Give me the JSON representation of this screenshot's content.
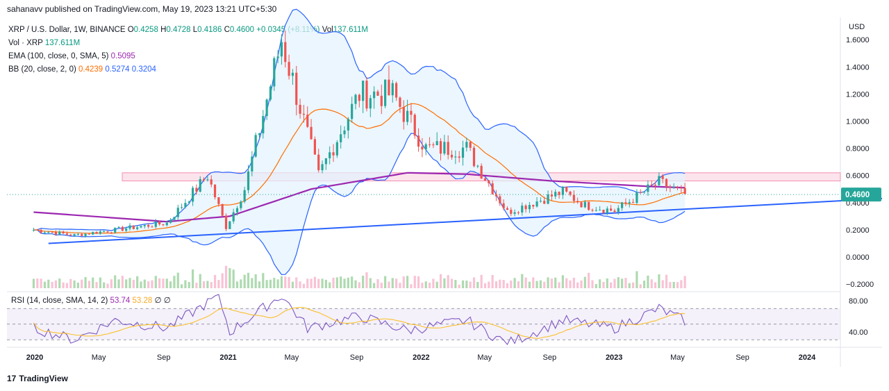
{
  "header": {
    "published": "sahanavv published on TradingView.com, May 19, 2023 13:21 UTC+5:30"
  },
  "legend": {
    "symbol": "XRP / U.S. Dollar, 1W, BINANCE",
    "o_label": "O",
    "o": "0.4258",
    "h_label": "H",
    "h": "0.4728",
    "l_label": "L",
    "l": "0.4186",
    "c_label": "C",
    "c": "0.4600",
    "change": "+0.0345 (+8.11%)",
    "vol_label": "Vol",
    "vol": "137.611M",
    "vol_row_label": "Vol · XRP",
    "vol_row": "137.611M",
    "ema_label": "EMA (100, close, 0, SMA, 5)",
    "ema": "0.5095",
    "bb_label": "BB (20, close, 2, 0)",
    "bb_mid": "0.4239",
    "bb_up": "0.5274",
    "bb_low": "0.3204"
  },
  "rsi_legend": {
    "label": "RSI (14, close, SMA, 14, 2)",
    "rsi": "53.74",
    "sma": "53.28",
    "z1": "∅",
    "z2": "∅"
  },
  "price_axis": {
    "unit": "USD",
    "ticks": [
      "1.6000",
      "1.4000",
      "1.2000",
      "1.0000",
      "0.8000",
      "0.6000",
      "0.4000",
      "0.2000",
      "0.0000",
      "−0.2000"
    ],
    "current": "0.4600"
  },
  "rsi_axis": {
    "ticks": [
      "80.00",
      "40.00"
    ]
  },
  "time_axis": {
    "ticks": [
      "2020",
      "May",
      "Sep",
      "2021",
      "May",
      "Sep",
      "2022",
      "May",
      "Sep",
      "2023",
      "May",
      "Sep",
      "2024"
    ]
  },
  "footer": {
    "brand": "TradingView",
    "logo": "17"
  },
  "colors": {
    "up": "#26a69a",
    "down": "#ef5350",
    "ema": "#9c27b0",
    "bb_mid": "#ff6d00",
    "bb_band": "#2962ff",
    "trend": "#2962ff",
    "zone": "#f8bbd0",
    "rsi": "#7e57c2",
    "rsi_ma": "#fbc02d"
  },
  "chart_data": {
    "type": "candlestick",
    "title": "XRP / U.S. Dollar, 1W, BINANCE",
    "ylabel": "USD",
    "ylim": [
      -0.2,
      1.7
    ],
    "resistance_zone": [
      0.56,
      0.62
    ],
    "trendline": {
      "x": [
        "2020-01-27",
        "2024-06-01"
      ],
      "y": [
        0.1,
        0.43
      ]
    },
    "price_anchors": {
      "x": [
        "2019-12-30",
        "2020-03-16",
        "2020-06-01",
        "2020-09-07",
        "2020-11-23",
        "2020-12-28",
        "2021-02-01",
        "2021-04-12",
        "2021-05-10",
        "2021-06-21",
        "2021-09-06",
        "2021-11-08",
        "2022-01-10",
        "2022-03-28",
        "2022-06-13",
        "2022-09-26",
        "2022-11-07",
        "2023-01-02",
        "2023-03-27",
        "2023-05-15"
      ],
      "y": [
        0.2,
        0.16,
        0.2,
        0.25,
        0.6,
        0.22,
        0.5,
        1.6,
        1.2,
        0.6,
        1.2,
        1.2,
        0.8,
        0.8,
        0.33,
        0.48,
        0.38,
        0.34,
        0.55,
        0.46
      ]
    },
    "ema_anchors": {
      "x": [
        "2019-12-30",
        "2020-09-07",
        "2021-01-04",
        "2021-06-07",
        "2021-12-06",
        "2022-03-28",
        "2022-09-05",
        "2023-03-06",
        "2023-05-15"
      ],
      "y": [
        0.33,
        0.26,
        0.3,
        0.5,
        0.62,
        0.61,
        0.56,
        0.52,
        0.51
      ]
    },
    "volume_note": "relative weekly volume bars",
    "rsi": {
      "ylim": [
        20,
        90
      ],
      "levels": [
        70,
        50,
        30
      ],
      "x": [
        "2019-12-30",
        "2020-03-16",
        "2020-06-01",
        "2020-09-07",
        "2020-12-14",
        "2021-01-04",
        "2021-04-12",
        "2021-05-31",
        "2021-09-06",
        "2021-12-06",
        "2022-03-28",
        "2022-06-13",
        "2022-09-26",
        "2023-01-02",
        "2023-03-27",
        "2023-05-15"
      ],
      "y": [
        45,
        30,
        55,
        45,
        86,
        40,
        87,
        45,
        60,
        42,
        55,
        25,
        55,
        45,
        70,
        54
      ]
    }
  }
}
